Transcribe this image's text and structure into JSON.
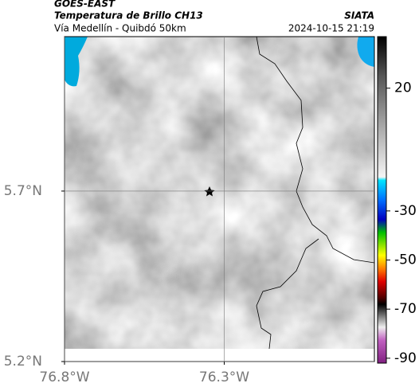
{
  "header": {
    "source": "GOES-EAST",
    "title": "Temperatura de Brillo CH13",
    "subtitle": "Vía Medellín - Quibdó 50km",
    "agency": "SIATA",
    "timestamp": "2024-10-15 21:19"
  },
  "map": {
    "xlim": [
      -76.8,
      -75.83
    ],
    "ylim": [
      5.2,
      6.153
    ],
    "xticks": [
      {
        "value": -76.8,
        "label": "76.8°W"
      },
      {
        "value": -76.3,
        "label": "76.3°W"
      }
    ],
    "yticks": [
      {
        "value": 5.2,
        "label": "5.2°N"
      },
      {
        "value": 5.7,
        "label": "5.7°N"
      }
    ]
  },
  "colorbar": {
    "lim": [
      -92,
      41
    ],
    "ticks": [
      20,
      -30,
      -50,
      -70,
      -90
    ]
  }
}
